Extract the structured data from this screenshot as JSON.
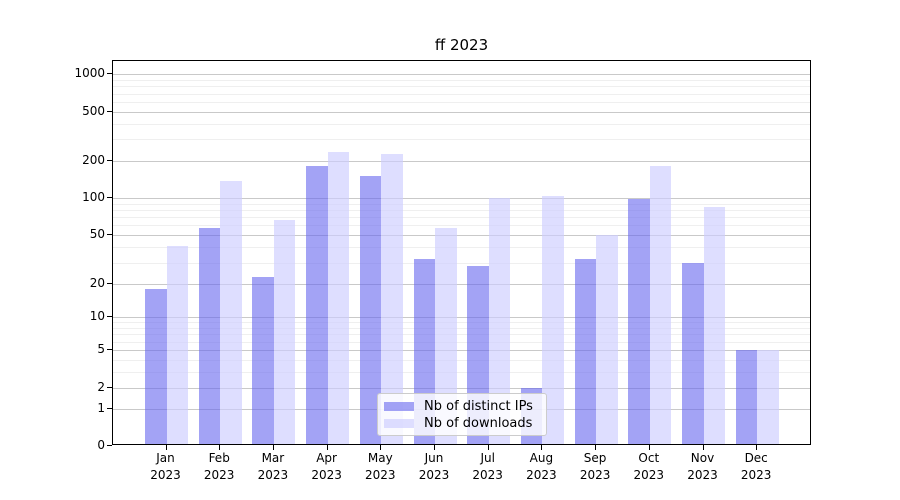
{
  "title": "ff 2023",
  "chart_data": {
    "type": "bar",
    "title": "ff 2023",
    "xlabel": "",
    "ylabel": "",
    "yscale": "symlog",
    "ylim": [
      0,
      1280
    ],
    "grid": "both",
    "legend_position": "lower center",
    "y_ticks": [
      0,
      1,
      2,
      5,
      10,
      20,
      50,
      100,
      200,
      500,
      1000
    ],
    "categories": [
      "Jan 2023",
      "Feb 2023",
      "Mar 2023",
      "Apr 2023",
      "May 2023",
      "Jun 2023",
      "Jul 2023",
      "Aug 2023",
      "Sep 2023",
      "Oct 2023",
      "Nov 2023",
      "Dec 2023"
    ],
    "series": [
      {
        "name": "Nb of distinct IPs",
        "color": "#6666ee",
        "opacity": 0.6,
        "values": [
          18,
          57,
          23,
          180,
          152,
          32,
          28,
          2,
          32,
          98,
          30,
          5
        ]
      },
      {
        "name": "Nb of downloads",
        "color": "#ccccff",
        "opacity": 0.65,
        "values": [
          41,
          138,
          66,
          237,
          227,
          57,
          100,
          103,
          50,
          180,
          85,
          5
        ]
      }
    ]
  }
}
